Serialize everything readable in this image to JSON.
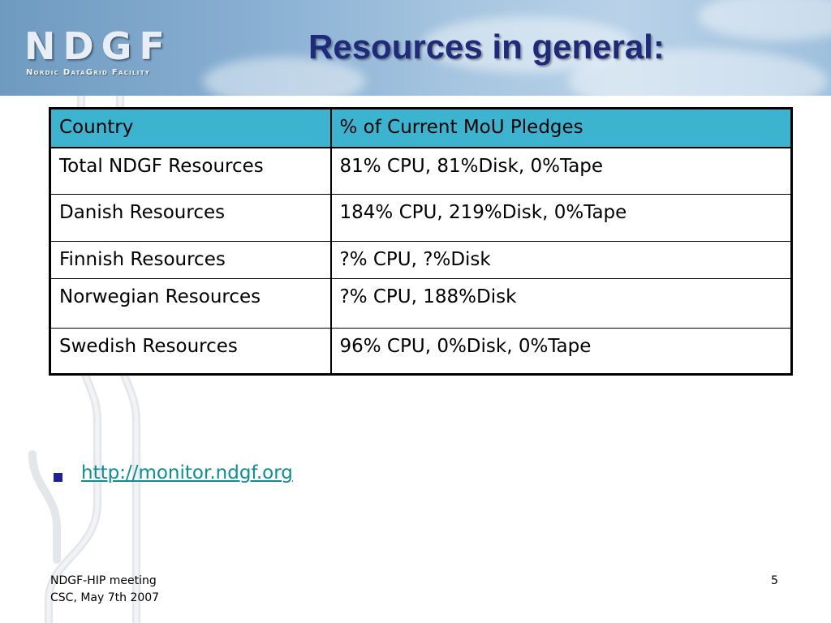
{
  "logo": {
    "word": "NDGF",
    "subtitle": "Nordic DataGrid Facility"
  },
  "title": "Resources in general:",
  "table": {
    "headers": [
      "Country",
      "% of Current MoU Pledges"
    ],
    "rows": [
      [
        "Total NDGF Resources",
        "81% CPU, 81%Disk, 0%Tape"
      ],
      [
        "Danish Resources",
        "184% CPU, 219%Disk, 0%Tape"
      ],
      [
        "Finnish Resources",
        "?% CPU, ?%Disk"
      ],
      [
        "Norwegian Resources",
        "?% CPU, 188%Disk"
      ],
      [
        "Swedish Resources",
        "96% CPU, 0%Disk, 0%Tape"
      ]
    ]
  },
  "bullets": [
    {
      "text": "http://monitor.ndgf.org"
    }
  ],
  "footer": {
    "line1": "NDGF-HIP meeting",
    "line2": "CSC, May 7th 2007",
    "page": "5"
  },
  "colors": {
    "title": "#1f2a7a",
    "table_header": "#3db4cf",
    "link": "#0b8f8f",
    "bullet": "#1f1f9a"
  }
}
